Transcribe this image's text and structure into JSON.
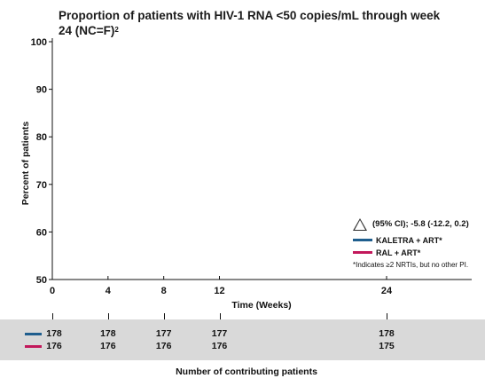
{
  "title": "Proportion of patients with HIV-1 RNA <50 copies/mL through week 24 (NC=F)",
  "title_sup": "2",
  "chart_data": {
    "type": "line",
    "title": "Proportion of patients with HIV-1 RNA <50 copies/mL through week 24 (NC=F)",
    "xlabel": "Time (Weeks)",
    "ylabel": "Percent of patients",
    "x_ticks": [
      0,
      4,
      8,
      12,
      24
    ],
    "y_ticks": [
      50,
      60,
      70,
      80,
      90,
      100
    ],
    "ylim": [
      50,
      100
    ],
    "xlim": [
      0,
      24
    ],
    "grid": false,
    "legend_position": "bottom-right",
    "series": [
      {
        "name": "KALETRA + ART*",
        "color": "#1f5e8e"
      },
      {
        "name": "RAL + ART*",
        "color": "#c2185b"
      }
    ],
    "annotation": "(95% CI); -5.8 (-12.2, 0.2)",
    "footnote": "*Indicates ≥2 NRTIs, but no other PI."
  },
  "contributing": {
    "caption": "Number of contributing patients",
    "weeks": [
      0,
      4,
      8,
      12,
      24
    ],
    "rows": [
      {
        "color": "#1f5e8e",
        "values": [
          "178",
          "178",
          "177",
          "177",
          "178"
        ]
      },
      {
        "color": "#c2185b",
        "values": [
          "176",
          "176",
          "176",
          "176",
          "175"
        ]
      }
    ]
  }
}
